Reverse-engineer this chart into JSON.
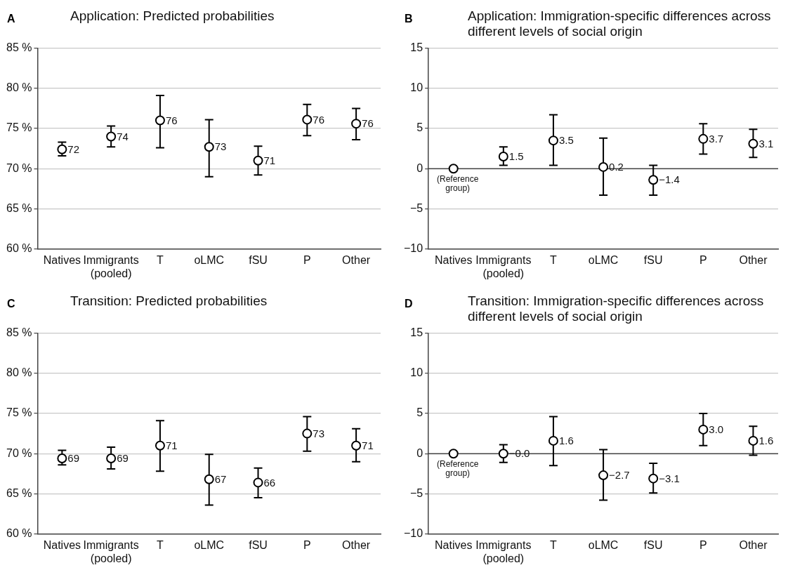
{
  "chart_data": [
    {
      "type": "scatter",
      "title": "Application: Predicted probabilities",
      "annotations": [
        "A"
      ],
      "categories": [
        "Natives",
        "Immigrants\n(pooled)",
        "T",
        "oLMC",
        "fSU",
        "P",
        "Other"
      ],
      "values": [
        72.4,
        74.0,
        76.0,
        72.7,
        71.0,
        76.1,
        75.6
      ],
      "color": "#000000",
      "errors": [
        [
          71.6,
          73.3
        ],
        [
          72.7,
          75.3
        ],
        [
          72.6,
          79.1
        ],
        [
          69.0,
          76.1
        ],
        [
          69.2,
          72.8
        ],
        [
          74.1,
          78.0
        ],
        [
          73.6,
          77.5
        ]
      ],
      "value_labels": [
        "72",
        "74",
        "76",
        "73",
        "71",
        "76",
        "76"
      ],
      "ylim": [
        60,
        85
      ],
      "yticks": [
        {
          "value": 60,
          "label": "60 %"
        },
        {
          "value": 65,
          "label": "65 %"
        },
        {
          "value": 70,
          "label": "70 %"
        },
        {
          "value": 75,
          "label": "75 %"
        },
        {
          "value": 80,
          "label": "80 %"
        },
        {
          "value": 85,
          "label": "85 %"
        }
      ],
      "grid": "y",
      "marker": "circle"
    },
    {
      "type": "scatter",
      "title": "Application: Immigration-specific differences across different levels of social origin",
      "annotations": [
        "B",
        {
          "text": "(Reference group)",
          "x": "Natives",
          "y": 0
        }
      ],
      "categories": [
        "Natives",
        "Immigrants\n(pooled)",
        "T",
        "oLMC",
        "fSU",
        "P",
        "Other"
      ],
      "values": [
        0,
        1.5,
        3.5,
        0.2,
        -1.4,
        3.7,
        3.1
      ],
      "color": "#000000",
      "errors": [
        null,
        [
          0.4,
          2.7
        ],
        [
          0.4,
          6.7
        ],
        [
          -3.3,
          3.8
        ],
        [
          -3.3,
          0.4
        ],
        [
          1.8,
          5.6
        ],
        [
          1.4,
          4.9
        ]
      ],
      "value_labels": [
        null,
        "1.5",
        "3.5",
        "0.2",
        "−1.4",
        "3.7",
        "3.1"
      ],
      "ylim": [
        -10,
        15
      ],
      "yticks": [
        {
          "value": -10,
          "label": "−10"
        },
        {
          "value": -5,
          "label": "−5"
        },
        0,
        5,
        10,
        15
      ],
      "ref_lines": [
        {
          "axis": "y",
          "value": 0,
          "color": "#000000"
        }
      ],
      "grid": "y",
      "marker": "circle"
    },
    {
      "type": "scatter",
      "title": "Transition: Predicted probabilities",
      "annotations": [
        "C"
      ],
      "categories": [
        "Natives",
        "Immigrants\n(pooled)",
        "T",
        "oLMC",
        "fSU",
        "P",
        "Other"
      ],
      "values": [
        69.4,
        69.4,
        71.0,
        66.8,
        66.4,
        72.5,
        71.0
      ],
      "color": "#000000",
      "errors": [
        [
          68.6,
          70.4
        ],
        [
          68.1,
          70.8
        ],
        [
          67.8,
          74.1
        ],
        [
          63.6,
          69.9
        ],
        [
          64.5,
          68.2
        ],
        [
          70.3,
          74.6
        ],
        [
          69.0,
          73.1
        ]
      ],
      "value_labels": [
        "69",
        "69",
        "71",
        "67",
        "66",
        "73",
        "71"
      ],
      "ylim": [
        60,
        85
      ],
      "yticks": [
        {
          "value": 60,
          "label": "60 %"
        },
        {
          "value": 65,
          "label": "65 %"
        },
        {
          "value": 70,
          "label": "70 %"
        },
        {
          "value": 75,
          "label": "75 %"
        },
        {
          "value": 80,
          "label": "80 %"
        },
        {
          "value": 85,
          "label": "85 %"
        }
      ],
      "grid": "y",
      "marker": "circle"
    },
    {
      "type": "scatter",
      "title": "Transition: Immigration-specific differences across different levels of social origin",
      "annotations": [
        "D",
        {
          "text": "(Reference group)",
          "x": "Natives",
          "y": 0
        }
      ],
      "categories": [
        "Natives",
        "Immigrants\n(pooled)",
        "T",
        "oLMC",
        "fSU",
        "P",
        "Other"
      ],
      "values": [
        0,
        0.0,
        1.6,
        -2.7,
        -3.1,
        3.0,
        1.6
      ],
      "color": "#000000",
      "errors": [
        null,
        [
          -1.1,
          1.1
        ],
        [
          -1.5,
          4.6
        ],
        [
          -5.8,
          0.5
        ],
        [
          -4.9,
          -1.2
        ],
        [
          1.0,
          5.0
        ],
        [
          -0.2,
          3.4
        ]
      ],
      "value_labels": [
        null,
        "−0.0",
        "1.6",
        "−2.7",
        "−3.1",
        "3.0",
        "1.6"
      ],
      "ylim": [
        -10,
        15
      ],
      "yticks": [
        {
          "value": -10,
          "label": "−10"
        },
        {
          "value": -5,
          "label": "−5"
        },
        0,
        5,
        10,
        15
      ],
      "ref_lines": [
        {
          "axis": "y",
          "value": 0,
          "color": "#000000"
        }
      ],
      "grid": "y",
      "marker": "circle"
    }
  ]
}
